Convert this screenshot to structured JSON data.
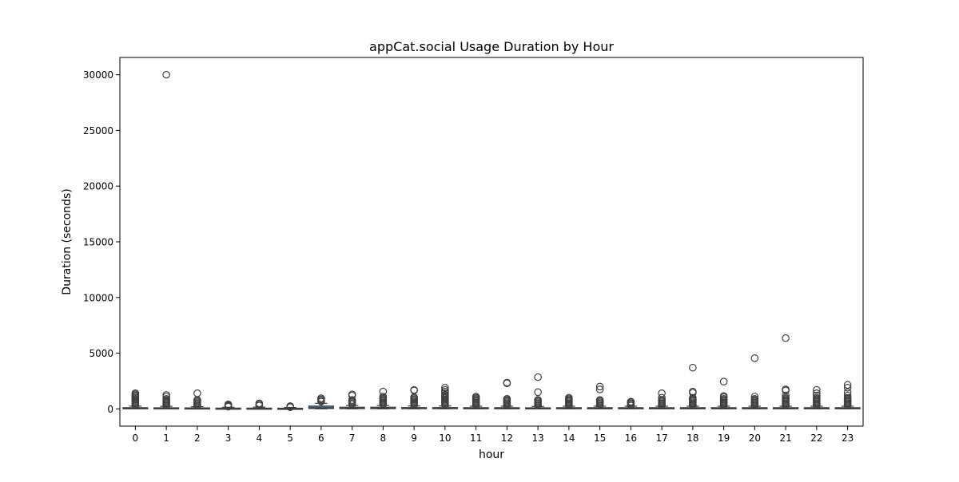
{
  "chart_data": {
    "type": "box",
    "title": "appCat.social Usage Duration by Hour",
    "xlabel": "hour",
    "ylabel": "Duration (seconds)",
    "ylim": [
      -1550,
      31550
    ],
    "yticks": [
      0,
      5000,
      10000,
      15000,
      20000,
      25000,
      30000
    ],
    "grid": false,
    "box_color": "#4c72b0",
    "categories": [
      "0",
      "1",
      "2",
      "3",
      "4",
      "5",
      "6",
      "7",
      "8",
      "9",
      "10",
      "11",
      "12",
      "13",
      "14",
      "15",
      "16",
      "17",
      "18",
      "19",
      "20",
      "21",
      "22",
      "23"
    ],
    "boxes": [
      {
        "hour": "0",
        "q1": 20,
        "median": 50,
        "q3": 110,
        "whisker_low": 0,
        "whisker_high": 250,
        "outliers": [
          300,
          400,
          500,
          600,
          700,
          800,
          900,
          1000,
          1100,
          1200,
          1300,
          1400
        ]
      },
      {
        "hour": "1",
        "q1": 20,
        "median": 45,
        "q3": 100,
        "whisker_low": 0,
        "whisker_high": 230,
        "outliers": [
          300,
          400,
          500,
          600,
          700,
          800,
          900,
          1100,
          1250,
          30000
        ]
      },
      {
        "hour": "2",
        "q1": 15,
        "median": 40,
        "q3": 90,
        "whisker_low": 0,
        "whisker_high": 200,
        "outliers": [
          300,
          400,
          500,
          600,
          700,
          800,
          1400
        ]
      },
      {
        "hour": "3",
        "q1": 10,
        "median": 30,
        "q3": 70,
        "whisker_low": 0,
        "whisker_high": 150,
        "outliers": [
          200,
          250,
          300,
          350,
          400
        ]
      },
      {
        "hour": "4",
        "q1": 10,
        "median": 30,
        "q3": 70,
        "whisker_low": 0,
        "whisker_high": 160,
        "outliers": [
          300,
          400,
          500
        ]
      },
      {
        "hour": "5",
        "q1": 10,
        "median": 25,
        "q3": 60,
        "whisker_low": 0,
        "whisker_high": 130,
        "outliers": [
          150,
          200,
          250
        ]
      },
      {
        "hour": "6",
        "q1": 30,
        "median": 100,
        "q3": 250,
        "whisker_low": 0,
        "whisker_high": 500,
        "outliers": [
          650,
          750,
          850,
          950
        ]
      },
      {
        "hour": "7",
        "q1": 20,
        "median": 60,
        "q3": 150,
        "whisker_low": 0,
        "whisker_high": 300,
        "outliers": [
          400,
          500,
          600,
          700,
          800,
          1200,
          1300
        ]
      },
      {
        "hour": "8",
        "q1": 20,
        "median": 60,
        "q3": 150,
        "whisker_low": 0,
        "whisker_high": 300,
        "outliers": [
          400,
          500,
          600,
          700,
          800,
          900,
          1000,
          1100,
          1550
        ]
      },
      {
        "hour": "9",
        "q1": 15,
        "median": 50,
        "q3": 120,
        "whisker_low": 0,
        "whisker_high": 260,
        "outliers": [
          350,
          450,
          550,
          650,
          750,
          850,
          950,
          1050,
          1650,
          1700
        ]
      },
      {
        "hour": "10",
        "q1": 15,
        "median": 50,
        "q3": 120,
        "whisker_low": 0,
        "whisker_high": 260,
        "outliers": [
          350,
          450,
          550,
          650,
          750,
          850,
          950,
          1050,
          1150,
          1250,
          1400,
          1550,
          1700,
          1900
        ]
      },
      {
        "hour": "11",
        "q1": 15,
        "median": 45,
        "q3": 110,
        "whisker_low": 0,
        "whisker_high": 240,
        "outliers": [
          300,
          400,
          500,
          600,
          700,
          800,
          900,
          1000,
          1100
        ]
      },
      {
        "hour": "12",
        "q1": 15,
        "median": 45,
        "q3": 110,
        "whisker_low": 0,
        "whisker_high": 240,
        "outliers": [
          300,
          400,
          500,
          600,
          700,
          800,
          900,
          2300,
          2350
        ]
      },
      {
        "hour": "13",
        "q1": 15,
        "median": 40,
        "q3": 100,
        "whisker_low": 0,
        "whisker_high": 220,
        "outliers": [
          300,
          400,
          500,
          600,
          700,
          800,
          1500,
          2850
        ]
      },
      {
        "hour": "14",
        "q1": 15,
        "median": 45,
        "q3": 110,
        "whisker_low": 0,
        "whisker_high": 240,
        "outliers": [
          300,
          400,
          500,
          600,
          700,
          800,
          900,
          1000
        ]
      },
      {
        "hour": "15",
        "q1": 15,
        "median": 45,
        "q3": 110,
        "whisker_low": 0,
        "whisker_high": 240,
        "outliers": [
          300,
          400,
          500,
          600,
          700,
          800,
          1750,
          2000
        ]
      },
      {
        "hour": "16",
        "q1": 15,
        "median": 45,
        "q3": 110,
        "whisker_low": 0,
        "whisker_high": 240,
        "outliers": [
          300,
          400,
          500,
          600,
          650
        ]
      },
      {
        "hour": "17",
        "q1": 15,
        "median": 45,
        "q3": 110,
        "whisker_low": 0,
        "whisker_high": 240,
        "outliers": [
          300,
          400,
          500,
          600,
          700,
          800,
          1000,
          1400
        ]
      },
      {
        "hour": "18",
        "q1": 15,
        "median": 45,
        "q3": 110,
        "whisker_low": 0,
        "whisker_high": 240,
        "outliers": [
          300,
          400,
          500,
          600,
          700,
          800,
          900,
          1000,
          1450,
          1550,
          3700
        ]
      },
      {
        "hour": "19",
        "q1": 15,
        "median": 45,
        "q3": 110,
        "whisker_low": 0,
        "whisker_high": 240,
        "outliers": [
          300,
          400,
          500,
          600,
          700,
          800,
          900,
          1050,
          1150,
          2450
        ]
      },
      {
        "hour": "20",
        "q1": 15,
        "median": 45,
        "q3": 110,
        "whisker_low": 0,
        "whisker_high": 240,
        "outliers": [
          300,
          400,
          500,
          600,
          700,
          800,
          900,
          1100,
          4550
        ]
      },
      {
        "hour": "21",
        "q1": 15,
        "median": 45,
        "q3": 110,
        "whisker_low": 0,
        "whisker_high": 240,
        "outliers": [
          300,
          400,
          500,
          600,
          700,
          800,
          900,
          1000,
          1200,
          1650,
          1750,
          6350
        ]
      },
      {
        "hour": "22",
        "q1": 15,
        "median": 45,
        "q3": 110,
        "whisker_low": 0,
        "whisker_high": 240,
        "outliers": [
          300,
          400,
          500,
          600,
          700,
          800,
          900,
          1000,
          1200,
          1400,
          1700
        ]
      },
      {
        "hour": "23",
        "q1": 15,
        "median": 45,
        "q3": 110,
        "whisker_low": 0,
        "whisker_high": 240,
        "outliers": [
          300,
          400,
          500,
          600,
          700,
          800,
          900,
          1000,
          1200,
          1500,
          1900,
          2150
        ]
      }
    ]
  }
}
